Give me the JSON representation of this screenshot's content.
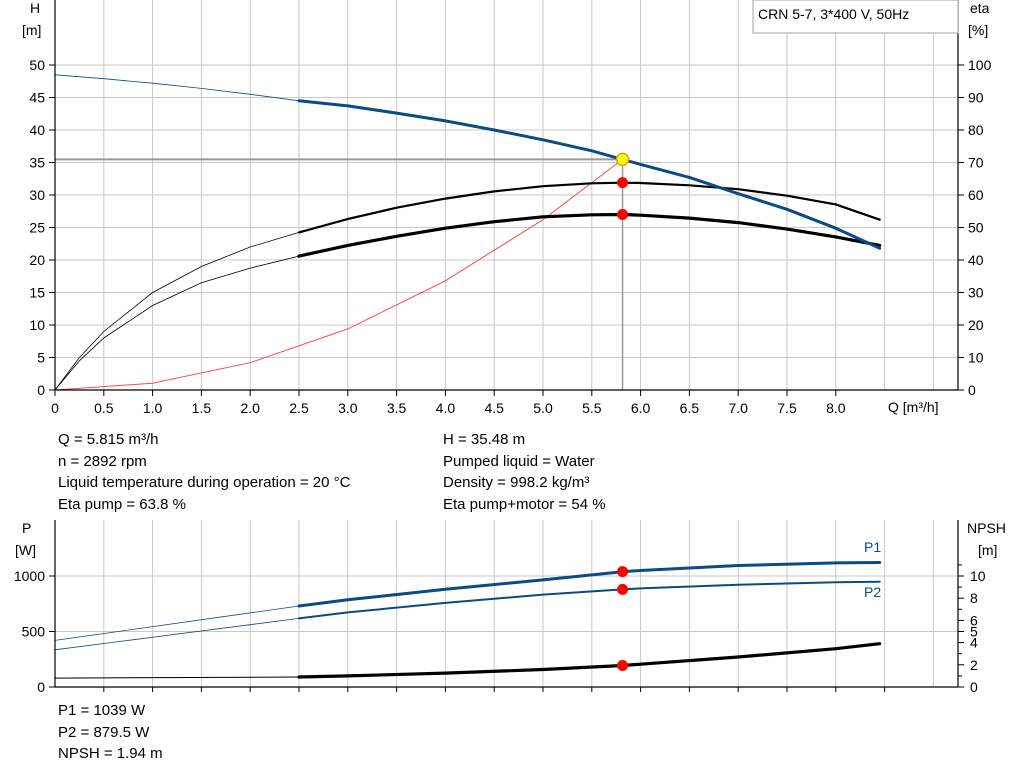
{
  "chart_data": [
    {
      "type": "line",
      "title": "CRN 5-7, 3*400 V, 50Hz",
      "xlabel": "Q [m³/h]",
      "ylabel_left": [
        "H",
        "[m]"
      ],
      "ylabel_right": [
        "eta",
        "[%]"
      ],
      "xlim": [
        0,
        9
      ],
      "ylim_left": [
        0,
        50
      ],
      "ylim_right": [
        0,
        100
      ],
      "x_ticks": [
        "0",
        "0.5",
        "1.0",
        "1.5",
        "2.0",
        "2.5",
        "3.0",
        "3.5",
        "4.0",
        "4.5",
        "5.0",
        "5.5",
        "6.0",
        "6.5",
        "7.0",
        "7.5",
        "8.0"
      ],
      "y_ticks_left": [
        "0",
        "5",
        "10",
        "15",
        "20",
        "25",
        "30",
        "35",
        "40",
        "45",
        "50"
      ],
      "y_ticks_right": [
        "0",
        "10",
        "20",
        "30",
        "40",
        "50",
        "60",
        "70",
        "80",
        "90",
        "100"
      ],
      "grid": true,
      "series": [
        {
          "key": "head",
          "axis": "left",
          "color": "#0b4a84",
          "x": [
            0,
            0.5,
            1,
            1.5,
            2,
            2.5,
            3,
            3.5,
            4,
            4.5,
            5,
            5.5,
            5.815,
            6,
            6.5,
            7,
            7.5,
            8,
            8.45
          ],
          "y": [
            48.5,
            47.9,
            47.2,
            46.4,
            45.5,
            44.5,
            43.7,
            42.6,
            41.4,
            40.0,
            38.5,
            36.8,
            35.48,
            34.7,
            32.7,
            30.2,
            27.8,
            24.9,
            21.8
          ]
        },
        {
          "key": "eta_pump_motor",
          "axis": "right",
          "color": "#000000",
          "x": [
            0,
            0.25,
            0.5,
            1,
            1.5,
            2,
            2.5,
            3,
            3.5,
            4,
            4.5,
            5,
            5.5,
            5.815,
            6,
            6.5,
            7,
            7.5,
            8,
            8.45
          ],
          "y": [
            0,
            9,
            16,
            26,
            33,
            37.5,
            41.2,
            44.5,
            47.3,
            49.8,
            51.8,
            53.3,
            53.9,
            54,
            53.8,
            52.9,
            51.5,
            49.5,
            47.1,
            44.5
          ]
        },
        {
          "key": "eta_pump",
          "axis": "right",
          "color": "#000000",
          "x": [
            0,
            0.25,
            0.5,
            1,
            1.5,
            2,
            2.5,
            3,
            3.5,
            4,
            4.5,
            5,
            5.5,
            5.815,
            6,
            6.5,
            7,
            7.5,
            8,
            8.45
          ],
          "y": [
            0,
            10,
            18,
            30,
            38,
            44,
            48.5,
            52.6,
            56.1,
            58.9,
            61.1,
            62.7,
            63.6,
            63.8,
            63.7,
            63.0,
            61.8,
            59.8,
            57.1,
            52.4
          ]
        },
        {
          "key": "system_curve",
          "axis": "left",
          "color": "#ff4a4a",
          "x": [
            0,
            1,
            2,
            3,
            4,
            5,
            5.815
          ],
          "y": [
            0,
            1.05,
            4.2,
            9.4,
            16.8,
            26.2,
            35.48
          ]
        }
      ],
      "operating_point": {
        "x": 5.815,
        "head": 35.48,
        "eta_pump": 63.8,
        "eta_pump_motor": 54
      }
    },
    {
      "type": "line",
      "xlim": [
        0,
        9
      ],
      "ylabel_left": [
        "P",
        "[W]"
      ],
      "ylabel_right": [
        "NPSH",
        "[m]"
      ],
      "ylim_left": [
        0,
        1000
      ],
      "ylim_right": [
        0,
        10
      ],
      "y_ticks_left": [
        "0",
        "500",
        "1000"
      ],
      "y_ticks_right": [
        "0",
        "2",
        "4",
        "5",
        "6",
        "8",
        "10"
      ],
      "grid": true,
      "series": [
        {
          "key": "P1",
          "name": "P1",
          "axis": "left",
          "color": "#0b4a84",
          "x": [
            0,
            2.5,
            3,
            4,
            5,
            5.815,
            6,
            7,
            8,
            8.45
          ],
          "y": [
            420,
            730,
            786,
            880,
            965,
            1039,
            1050,
            1095,
            1118,
            1122
          ]
        },
        {
          "key": "P2",
          "name": "P2",
          "axis": "left",
          "color": "#0b4a84",
          "x": [
            0,
            2.5,
            3,
            4,
            5,
            5.815,
            6,
            7,
            8,
            8.45
          ],
          "y": [
            335,
            618,
            672,
            758,
            832,
            879.5,
            888,
            922,
            943,
            948
          ]
        },
        {
          "key": "NPSH",
          "axis": "right",
          "color": "#000000",
          "x": [
            0,
            2.5,
            3,
            4,
            5,
            5.815,
            6,
            7,
            8,
            8.45
          ],
          "y": [
            0.8,
            0.9,
            1.0,
            1.25,
            1.58,
            1.94,
            2.05,
            2.7,
            3.45,
            3.9
          ]
        }
      ],
      "operating_point": {
        "x": 5.815,
        "P1": 1039,
        "P2": 879.5,
        "NPSH": 1.94
      }
    }
  ],
  "info_top_left": [
    "Q = 5.815 m³/h",
    "n = 2892 rpm",
    "Liquid temperature during operation = 20 °C",
    "Eta pump = 63.8 %"
  ],
  "info_top_right": [
    "H = 35.48 m",
    "Pumped liquid = Water",
    "Density = 998.2 kg/m³",
    "Eta pump+motor = 54 %"
  ],
  "info_bottom": [
    "P1 = 1039 W",
    "P2 = 879.5 W",
    "NPSH = 1.94 m"
  ],
  "colors": {
    "grid": "#c8c8c8",
    "axis": "#000000",
    "curve_blue": "#0b4a84",
    "system": "#ff4a4a",
    "point_red": "#ff0000",
    "point_yellow": "#ffff00"
  }
}
